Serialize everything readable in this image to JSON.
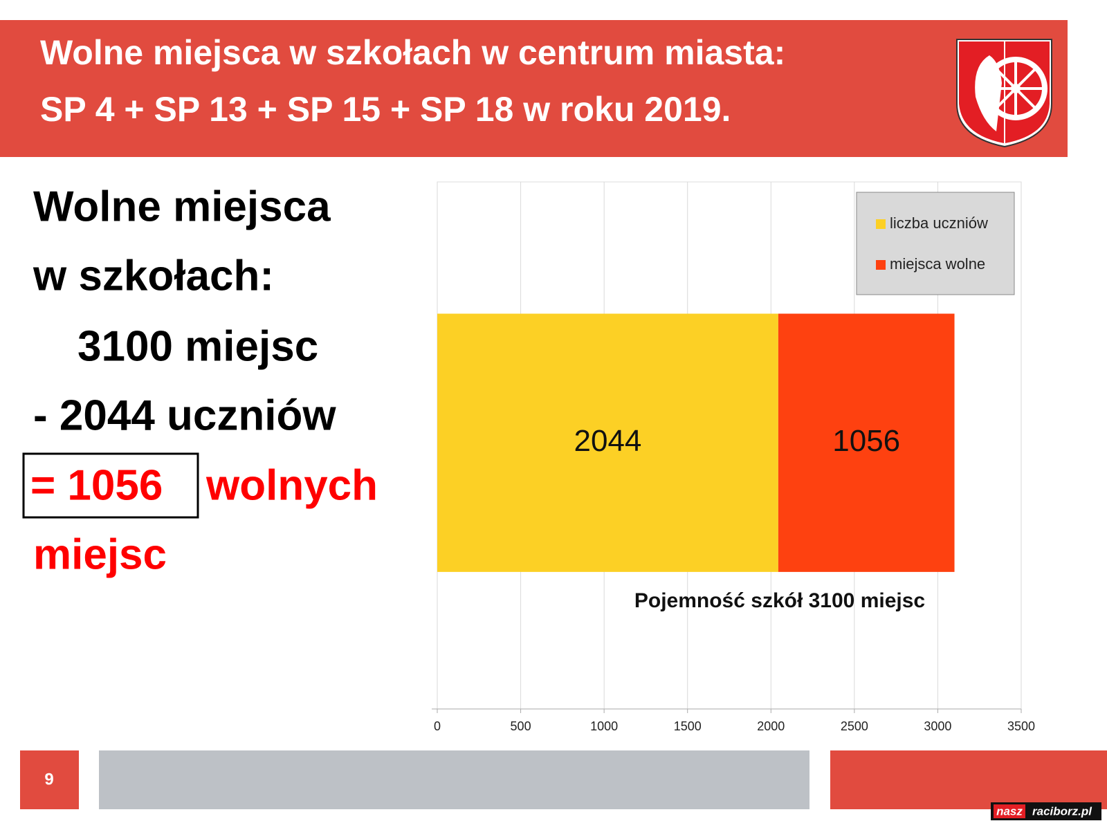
{
  "header": {
    "title_line1": "Wolne miejsca w szkołach w centrum miasta:",
    "title_line2": "SP 4 + SP 13 + SP 15 + SP 18 w roku 2019."
  },
  "summary": {
    "line1": "Wolne miejsca",
    "line2": "w szkołach:",
    "line3": "3100 miejsc",
    "line4": "-  2044 uczniów",
    "line5_boxed": "= 1056",
    "line5_rest": "wolnych",
    "line6": "miejsc"
  },
  "chart_data": {
    "type": "bar",
    "orientation": "horizontal",
    "stacked": true,
    "x_label": "Pojemność szkół 3100 miejsc",
    "categories": [
      null
    ],
    "series": [
      {
        "name": "liczba uczniów",
        "color": "#fcd025",
        "values": [
          2044
        ]
      },
      {
        "name": "miejsca wolne",
        "color": "#fe4110",
        "values": [
          1056
        ]
      }
    ],
    "xlim": [
      0,
      3500
    ],
    "xticks": [
      0,
      500,
      1000,
      1500,
      2000,
      2500,
      3000,
      3500
    ],
    "grid": true,
    "legend": "upper right"
  },
  "footer": {
    "page_number": "9",
    "watermark": [
      "nasz",
      "raciborz.pl"
    ]
  }
}
